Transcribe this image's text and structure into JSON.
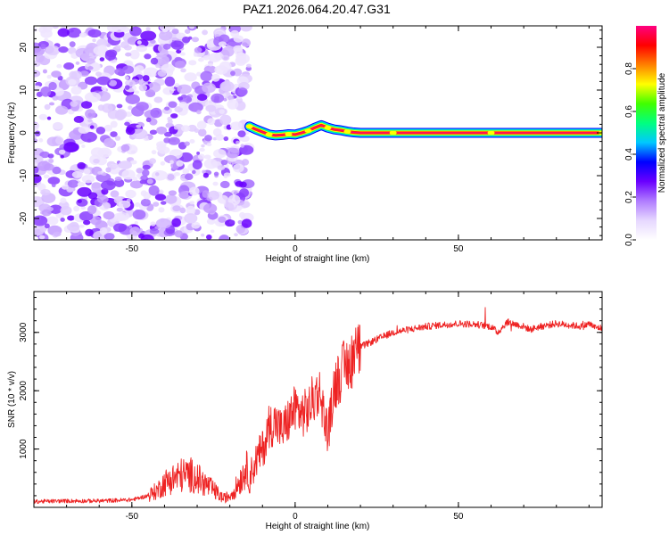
{
  "title": "PAZ1.2026.064.20.47.G31",
  "chart_data": [
    {
      "type": "heatmap",
      "xlabel": "Height of straight line (km)",
      "ylabel": "Frequency (Hz)",
      "xlim": [
        -80,
        94
      ],
      "ylim": [
        -25,
        25
      ],
      "xticks": [
        -50,
        0,
        50
      ],
      "xtick_labels": [
        "-50",
        "0",
        "50"
      ],
      "yticks": [
        -20,
        -10,
        0,
        10,
        20
      ],
      "ytick_labels": [
        "-20",
        "-10",
        "0",
        "10",
        "20"
      ],
      "colorbar": {
        "label": "Normalized spectral amplitude",
        "range": [
          0,
          1
        ],
        "ticks": [
          0.0,
          0.2,
          0.4,
          0.6,
          0.8
        ],
        "tick_labels": [
          "0.0",
          "0.2",
          "0.4",
          "0.6",
          "0.8"
        ],
        "colors": [
          "#ffffff",
          "#e6d7ff",
          "#b07cff",
          "#6a00ff",
          "#0000ff",
          "#00c8ff",
          "#00ff80",
          "#40ff00",
          "#ffff00",
          "#ff8000",
          "#ff0000",
          "#ff0080"
        ]
      },
      "noise_region_x": [
        -80,
        -14
      ],
      "ridge": {
        "x": [
          -14,
          -12,
          -10,
          -8,
          -6,
          -4,
          -2,
          0,
          2,
          4,
          6,
          8,
          10,
          12,
          14,
          16,
          18,
          20,
          30,
          40,
          50,
          60,
          70,
          80,
          94
        ],
        "freq": [
          1.5,
          0.8,
          0.2,
          -0.4,
          -0.6,
          -0.5,
          -0.3,
          -0.4,
          0.0,
          0.5,
          1.2,
          1.8,
          1.2,
          0.8,
          0.6,
          0.3,
          0.1,
          0.0,
          0.0,
          0.0,
          0.0,
          0.0,
          0.0,
          0.0,
          0.0
        ]
      }
    },
    {
      "type": "line",
      "xlabel": "Height of straight line (km)",
      "ylabel": "SNR (10 * v/v)",
      "xlim": [
        -80,
        94
      ],
      "ylim": [
        0,
        3700
      ],
      "xticks": [
        -50,
        0,
        50
      ],
      "xtick_labels": [
        "-50",
        "0",
        "50"
      ],
      "yticks": [
        1000,
        2000,
        3000
      ],
      "ytick_labels": [
        "1000",
        "2000",
        "3000"
      ],
      "color": "#ee2222",
      "series": [
        {
          "name": "SNR",
          "x": [
            -80,
            -70,
            -60,
            -50,
            -45,
            -42,
            -40,
            -38,
            -35,
            -32,
            -30,
            -28,
            -25,
            -22,
            -20,
            -18,
            -16,
            -15,
            -14,
            -13,
            -12,
            -11,
            -10,
            -9,
            -8,
            -6,
            -4,
            -2,
            0,
            2,
            4,
            5,
            6,
            7,
            8,
            9,
            10,
            11,
            12,
            14,
            16,
            18,
            20,
            25,
            30,
            35,
            40,
            45,
            50,
            55,
            60,
            62,
            65,
            70,
            72,
            75,
            80,
            85,
            88,
            90,
            92,
            94
          ],
          "y": [
            100,
            110,
            110,
            130,
            200,
            300,
            420,
            480,
            550,
            560,
            500,
            420,
            300,
            150,
            200,
            350,
            560,
            700,
            500,
            650,
            800,
            900,
            1000,
            1150,
            1400,
            1450,
            1300,
            1500,
            1700,
            1600,
            1650,
            1800,
            1900,
            2000,
            1900,
            1500,
            1300,
            1600,
            2100,
            2300,
            2450,
            2600,
            2750,
            2880,
            3000,
            3050,
            3100,
            3130,
            3150,
            3140,
            3100,
            3000,
            3180,
            3100,
            3050,
            3100,
            3150,
            3120,
            3100,
            3150,
            3080,
            3080
          ]
        }
      ]
    }
  ]
}
